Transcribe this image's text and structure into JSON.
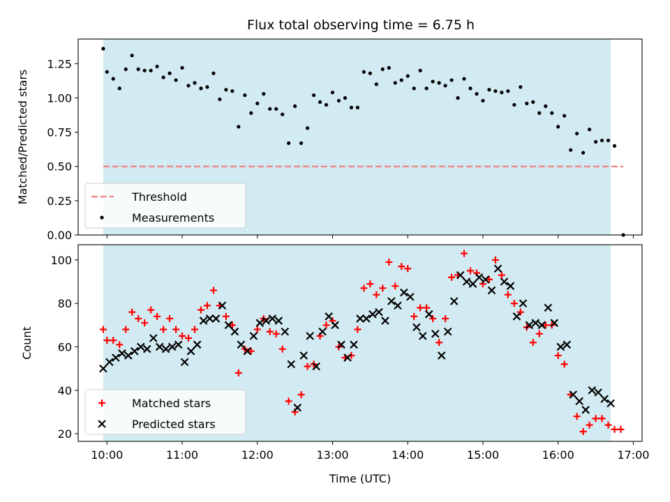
{
  "title": "Flux total observing time = 6.75 h",
  "colors": {
    "observing_span": "#add8e6",
    "threshold": "#f08080",
    "measurements": "#000000",
    "matched": "#ff0000",
    "predicted": "#000000"
  },
  "chart_data": [
    {
      "type": "scatter",
      "ylabel": "Matched/Predicted stars",
      "ylim": [
        0,
        1.43
      ],
      "yticks": [
        0.0,
        0.25,
        0.5,
        0.75,
        1.0,
        1.25
      ],
      "ytick_labels": [
        "0.00",
        "0.25",
        "0.50",
        "0.75",
        "1.00",
        "1.25"
      ],
      "xlim": [
        "09:37",
        "17:07"
      ],
      "observing_span": [
        "09:57",
        "16:42"
      ],
      "threshold": {
        "name": "Threshold",
        "value": 0.5,
        "x": [
          "09:57",
          "16:52"
        ]
      },
      "legend": {
        "position": "lower-left",
        "entries": [
          "Threshold",
          "Measurements"
        ]
      },
      "series": [
        {
          "name": "Measurements",
          "points": [
            [
              "09:57",
              1.36
            ],
            [
              "10:00",
              1.19
            ],
            [
              "10:05",
              1.14
            ],
            [
              "10:10",
              1.07
            ],
            [
              "10:15",
              1.21
            ],
            [
              "10:20",
              1.31
            ],
            [
              "10:25",
              1.21
            ],
            [
              "10:30",
              1.2
            ],
            [
              "10:35",
              1.2
            ],
            [
              "10:40",
              1.23
            ],
            [
              "10:45",
              1.15
            ],
            [
              "10:50",
              1.18
            ],
            [
              "10:55",
              1.13
            ],
            [
              "11:00",
              1.22
            ],
            [
              "11:05",
              1.09
            ],
            [
              "11:10",
              1.11
            ],
            [
              "11:15",
              1.07
            ],
            [
              "11:20",
              1.08
            ],
            [
              "11:25",
              1.18
            ],
            [
              "11:30",
              0.99
            ],
            [
              "11:35",
              1.06
            ],
            [
              "11:40",
              1.05
            ],
            [
              "11:45",
              0.79
            ],
            [
              "11:50",
              1.02
            ],
            [
              "11:55",
              0.89
            ],
            [
              "12:00",
              0.96
            ],
            [
              "12:05",
              1.03
            ],
            [
              "12:10",
              0.92
            ],
            [
              "12:15",
              0.92
            ],
            [
              "12:20",
              0.88
            ],
            [
              "12:25",
              0.67
            ],
            [
              "12:30",
              0.94
            ],
            [
              "12:35",
              0.67
            ],
            [
              "12:40",
              0.78
            ],
            [
              "12:45",
              1.02
            ],
            [
              "12:50",
              0.97
            ],
            [
              "12:55",
              0.95
            ],
            [
              "13:00",
              1.04
            ],
            [
              "13:05",
              0.98
            ],
            [
              "13:10",
              1.0
            ],
            [
              "13:15",
              0.93
            ],
            [
              "13:20",
              0.93
            ],
            [
              "13:25",
              1.19
            ],
            [
              "13:30",
              1.18
            ],
            [
              "13:35",
              1.1
            ],
            [
              "13:40",
              1.21
            ],
            [
              "13:45",
              1.22
            ],
            [
              "13:50",
              1.11
            ],
            [
              "13:55",
              1.13
            ],
            [
              "14:00",
              1.16
            ],
            [
              "14:05",
              1.07
            ],
            [
              "14:10",
              1.2
            ],
            [
              "14:15",
              1.07
            ],
            [
              "14:20",
              1.12
            ],
            [
              "14:25",
              1.11
            ],
            [
              "14:30",
              1.09
            ],
            [
              "14:35",
              1.13
            ],
            [
              "14:40",
              1.0
            ],
            [
              "14:45",
              1.14
            ],
            [
              "14:50",
              1.07
            ],
            [
              "14:55",
              1.03
            ],
            [
              "15:00",
              0.98
            ],
            [
              "15:05",
              1.06
            ],
            [
              "15:10",
              1.05
            ],
            [
              "15:15",
              1.04
            ],
            [
              "15:20",
              1.05
            ],
            [
              "15:25",
              0.95
            ],
            [
              "15:30",
              1.08
            ],
            [
              "15:35",
              0.96
            ],
            [
              "15:40",
              0.97
            ],
            [
              "15:45",
              0.89
            ],
            [
              "15:50",
              0.94
            ],
            [
              "15:55",
              0.89
            ],
            [
              "16:00",
              0.79
            ],
            [
              "16:05",
              0.87
            ],
            [
              "16:10",
              0.62
            ],
            [
              "16:15",
              0.74
            ],
            [
              "16:20",
              0.6
            ],
            [
              "16:25",
              0.77
            ],
            [
              "16:30",
              0.68
            ],
            [
              "16:35",
              0.69
            ],
            [
              "16:40",
              0.69
            ],
            [
              "16:45",
              0.65
            ],
            [
              "16:52",
              0.0
            ]
          ]
        }
      ]
    },
    {
      "type": "scatter",
      "xlabel": "Time (UTC)",
      "ylabel": "Count",
      "ylim": [
        16.5,
        107
      ],
      "yticks": [
        20,
        40,
        60,
        80,
        100
      ],
      "ytick_labels": [
        "20",
        "40",
        "60",
        "80",
        "100"
      ],
      "xlim": [
        "09:37",
        "17:07"
      ],
      "xticks": [
        "10:00",
        "11:00",
        "12:00",
        "13:00",
        "14:00",
        "15:00",
        "16:00",
        "17:00"
      ],
      "observing_span": [
        "09:57",
        "16:42"
      ],
      "legend": {
        "position": "lower-left",
        "entries": [
          "Matched stars",
          "Predicted stars"
        ]
      },
      "series": [
        {
          "name": "Matched stars",
          "marker": "plus",
          "points": [
            [
              "09:57",
              68
            ],
            [
              "10:00",
              63
            ],
            [
              "10:05",
              63
            ],
            [
              "10:10",
              61
            ],
            [
              "10:15",
              68
            ],
            [
              "10:20",
              76
            ],
            [
              "10:25",
              73
            ],
            [
              "10:30",
              71
            ],
            [
              "10:35",
              77
            ],
            [
              "10:40",
              74
            ],
            [
              "10:45",
              68
            ],
            [
              "10:50",
              73
            ],
            [
              "10:55",
              68
            ],
            [
              "11:00",
              65
            ],
            [
              "11:05",
              64
            ],
            [
              "11:10",
              68
            ],
            [
              "11:15",
              77
            ],
            [
              "11:20",
              79
            ],
            [
              "11:25",
              86
            ],
            [
              "11:30",
              79
            ],
            [
              "11:35",
              74
            ],
            [
              "11:40",
              70
            ],
            [
              "11:45",
              48
            ],
            [
              "11:50",
              59
            ],
            [
              "11:55",
              58
            ],
            [
              "12:00",
              68
            ],
            [
              "12:05",
              73
            ],
            [
              "12:10",
              67
            ],
            [
              "12:15",
              66
            ],
            [
              "12:20",
              59
            ],
            [
              "12:25",
              35
            ],
            [
              "12:30",
              30
            ],
            [
              "12:35",
              38
            ],
            [
              "12:40",
              51
            ],
            [
              "12:45",
              52
            ],
            [
              "12:50",
              65
            ],
            [
              "12:55",
              70
            ],
            [
              "13:00",
              72
            ],
            [
              "13:05",
              60
            ],
            [
              "13:10",
              55
            ],
            [
              "13:15",
              56
            ],
            [
              "13:20",
              68
            ],
            [
              "13:25",
              87
            ],
            [
              "13:30",
              89
            ],
            [
              "13:35",
              84
            ],
            [
              "13:40",
              87
            ],
            [
              "13:45",
              99
            ],
            [
              "13:50",
              88
            ],
            [
              "13:55",
              97
            ],
            [
              "14:00",
              96
            ],
            [
              "14:05",
              74
            ],
            [
              "14:10",
              78
            ],
            [
              "14:15",
              78
            ],
            [
              "14:20",
              73
            ],
            [
              "14:25",
              62
            ],
            [
              "14:30",
              73
            ],
            [
              "14:35",
              92
            ],
            [
              "14:40",
              93
            ],
            [
              "14:45",
              103
            ],
            [
              "14:50",
              95
            ],
            [
              "14:55",
              94
            ],
            [
              "15:00",
              89
            ],
            [
              "15:05",
              91
            ],
            [
              "15:10",
              100
            ],
            [
              "15:15",
              93
            ],
            [
              "15:20",
              84
            ],
            [
              "15:25",
              80
            ],
            [
              "15:30",
              76
            ],
            [
              "15:35",
              69
            ],
            [
              "15:40",
              62
            ],
            [
              "15:45",
              66
            ],
            [
              "15:50",
              70
            ],
            [
              "15:55",
              70
            ],
            [
              "16:00",
              56
            ],
            [
              "16:05",
              52
            ],
            [
              "16:10",
              38
            ],
            [
              "16:15",
              28
            ],
            [
              "16:20",
              21
            ],
            [
              "16:25",
              24
            ],
            [
              "16:30",
              27
            ],
            [
              "16:35",
              27
            ],
            [
              "16:40",
              24
            ],
            [
              "16:45",
              22
            ],
            [
              "16:50",
              22
            ]
          ]
        },
        {
          "name": "Predicted stars",
          "marker": "x",
          "points": [
            [
              "09:57",
              50
            ],
            [
              "10:02",
              53
            ],
            [
              "10:07",
              55
            ],
            [
              "10:12",
              57
            ],
            [
              "10:17",
              56
            ],
            [
              "10:22",
              58
            ],
            [
              "10:27",
              60
            ],
            [
              "10:32",
              59
            ],
            [
              "10:37",
              64
            ],
            [
              "10:42",
              60
            ],
            [
              "10:47",
              59
            ],
            [
              "10:52",
              60
            ],
            [
              "10:57",
              61
            ],
            [
              "11:02",
              53
            ],
            [
              "11:07",
              58
            ],
            [
              "11:12",
              61
            ],
            [
              "11:17",
              72
            ],
            [
              "11:22",
              73
            ],
            [
              "11:27",
              73
            ],
            [
              "11:32",
              79
            ],
            [
              "11:37",
              70
            ],
            [
              "11:42",
              67
            ],
            [
              "11:47",
              61
            ],
            [
              "11:52",
              58
            ],
            [
              "11:57",
              65
            ],
            [
              "12:02",
              71
            ],
            [
              "12:07",
              72
            ],
            [
              "12:12",
              73
            ],
            [
              "12:17",
              72
            ],
            [
              "12:22",
              67
            ],
            [
              "12:27",
              52
            ],
            [
              "12:32",
              32
            ],
            [
              "12:37",
              56
            ],
            [
              "12:42",
              65
            ],
            [
              "12:47",
              51
            ],
            [
              "12:52",
              67
            ],
            [
              "12:57",
              74
            ],
            [
              "13:02",
              70
            ],
            [
              "13:07",
              61
            ],
            [
              "13:12",
              55
            ],
            [
              "13:17",
              61
            ],
            [
              "13:22",
              73
            ],
            [
              "13:27",
              73
            ],
            [
              "13:32",
              75
            ],
            [
              "13:37",
              76
            ],
            [
              "13:42",
              72
            ],
            [
              "13:47",
              81
            ],
            [
              "13:52",
              79
            ],
            [
              "13:57",
              85
            ],
            [
              "14:02",
              83
            ],
            [
              "14:07",
              69
            ],
            [
              "14:12",
              65
            ],
            [
              "14:17",
              75
            ],
            [
              "14:22",
              66
            ],
            [
              "14:27",
              56
            ],
            [
              "14:32",
              67
            ],
            [
              "14:37",
              81
            ],
            [
              "14:42",
              93
            ],
            [
              "14:47",
              90
            ],
            [
              "14:52",
              89
            ],
            [
              "14:57",
              92
            ],
            [
              "15:02",
              91
            ],
            [
              "15:07",
              86
            ],
            [
              "15:12",
              96
            ],
            [
              "15:17",
              90
            ],
            [
              "15:22",
              88
            ],
            [
              "15:27",
              74
            ],
            [
              "15:32",
              80
            ],
            [
              "15:37",
              70
            ],
            [
              "15:42",
              71
            ],
            [
              "15:47",
              70
            ],
            [
              "15:52",
              78
            ],
            [
              "15:57",
              71
            ],
            [
              "16:02",
              60
            ],
            [
              "16:07",
              61
            ],
            [
              "16:12",
              38
            ],
            [
              "16:17",
              35
            ],
            [
              "16:22",
              31
            ],
            [
              "16:27",
              40
            ],
            [
              "16:32",
              39
            ],
            [
              "16:37",
              36
            ],
            [
              "16:42",
              34
            ]
          ]
        }
      ]
    }
  ]
}
